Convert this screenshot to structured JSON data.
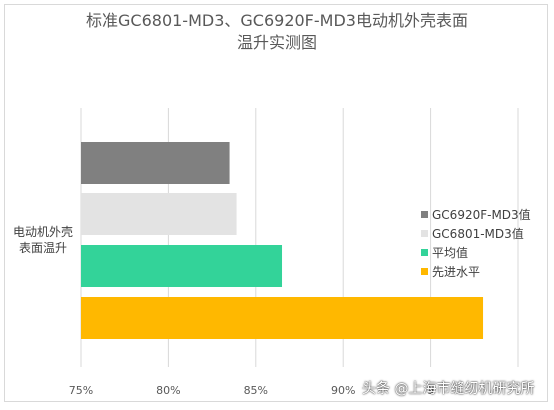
{
  "chart_data": {
    "type": "bar",
    "orientation": "horizontal",
    "title_line1": "标准GC6801-MD3、GC6920F-MD3电动机外壳表面",
    "title_line2": "温升实测图",
    "category_label_line1": "电动机外壳",
    "category_label_line2": "表面温升",
    "xlim": [
      0.75,
      1.0
    ],
    "x_ticks": [
      "75%",
      "80%",
      "85%",
      "90%",
      "9"
    ],
    "grid": true,
    "legend_position": "right",
    "series": [
      {
        "name": "GC6920F-MD3值",
        "value": 0.835,
        "color": "#808080"
      },
      {
        "name": "GC6801-MD3值",
        "value": 0.839,
        "color": "#e3e3e3"
      },
      {
        "name": "平均值",
        "value": 0.865,
        "color": "#33d399"
      },
      {
        "name": "先进水平",
        "value": 0.98,
        "color": "#ffb800"
      }
    ]
  },
  "watermark": "头条 @上海市缝纫机研究所"
}
